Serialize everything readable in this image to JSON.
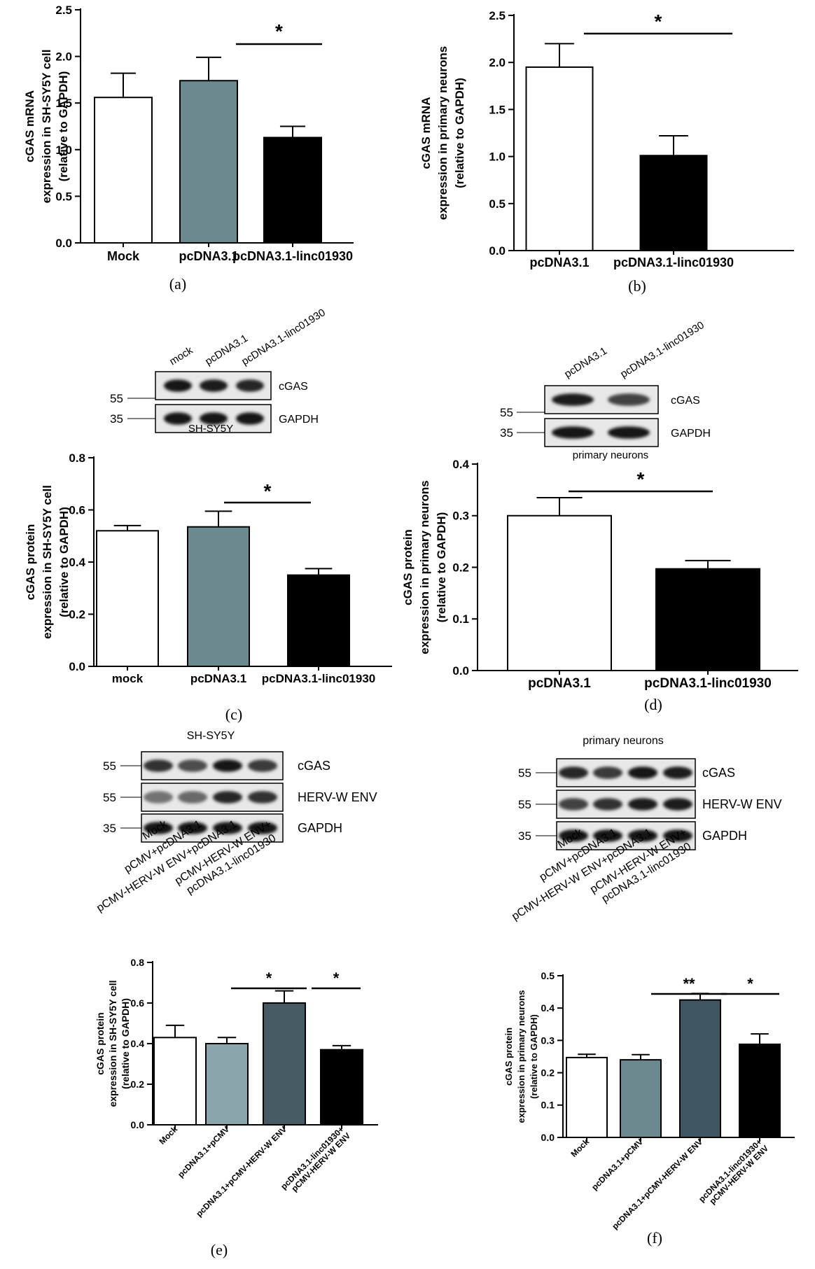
{
  "chart_data": [
    {
      "id": "a",
      "type": "bar",
      "panel_label": "(a)",
      "categories": [
        "Mock",
        "pcDNA3.1",
        "pcDNA3.1-linc01930"
      ],
      "values": [
        1.56,
        1.74,
        1.13
      ],
      "errors": [
        0.26,
        0.25,
        0.12
      ],
      "bar_colors": [
        "#ffffff",
        "#6d8990",
        "#000000"
      ],
      "ylabel": [
        "cGAS mRNA",
        "expression in SH-SY5Y cell",
        "(relative to GAPDH)"
      ],
      "ylim": [
        0,
        2.5
      ],
      "yticks": [
        "0.0",
        "0.5",
        "1.0",
        "1.5",
        "2.0",
        "2.5"
      ],
      "significance": [
        {
          "from": 1,
          "to": 2,
          "label": "*"
        }
      ]
    },
    {
      "id": "b",
      "type": "bar",
      "panel_label": "(b)",
      "categories": [
        "pcDNA3.1",
        "pcDNA3.1-linc01930"
      ],
      "values": [
        1.95,
        1.01
      ],
      "errors": [
        0.25,
        0.21
      ],
      "bar_colors": [
        "#ffffff",
        "#000000"
      ],
      "ylabel": [
        "cGAS mRNA",
        "expression in primary neurons",
        "(relative to GAPDH)"
      ],
      "ylim": [
        0,
        2.5
      ],
      "yticks": [
        "0.0",
        "0.5",
        "1.0",
        "1.5",
        "2.0",
        "2.5"
      ],
      "significance": [
        {
          "from": 0,
          "to": 1,
          "label": "*"
        }
      ]
    },
    {
      "id": "c",
      "type": "bar",
      "panel_label": "(c)",
      "categories": [
        "mock",
        "pcDNA3.1",
        "pcDNA3.1-linc01930"
      ],
      "values": [
        0.52,
        0.535,
        0.35
      ],
      "errors": [
        0.02,
        0.06,
        0.025
      ],
      "bar_colors": [
        "#ffffff",
        "#6d8990",
        "#000000"
      ],
      "ylabel": [
        "cGAS protein",
        "expression in SH-SY5Y cell",
        "(relative to GAPDH)"
      ],
      "ylim": [
        0,
        0.8
      ],
      "yticks": [
        "0.0",
        "0.2",
        "0.4",
        "0.6",
        "0.8"
      ],
      "significance": [
        {
          "from": 1,
          "to": 2,
          "label": "*"
        }
      ]
    },
    {
      "id": "d",
      "type": "bar",
      "panel_label": "(d)",
      "categories": [
        "pcDNA3.1",
        "pcDNA3.1-linc01930"
      ],
      "values": [
        0.3,
        0.197
      ],
      "errors": [
        0.035,
        0.016
      ],
      "bar_colors": [
        "#ffffff",
        "#000000"
      ],
      "ylabel": [
        "cGAS protein",
        "expression in primary neurons",
        "(relative to GAPDH)"
      ],
      "ylim": [
        0,
        0.4
      ],
      "yticks": [
        "0.0",
        "0.1",
        "0.2",
        "0.3",
        "0.4"
      ],
      "significance": [
        {
          "from": 0,
          "to": 1,
          "label": "*"
        }
      ]
    },
    {
      "id": "e",
      "type": "bar",
      "panel_label": "(e)",
      "categories": [
        "Mock",
        "pcDNA3.1+pCMV",
        "pcDNA3.1+pCMV-HERV-W ENV",
        "pcDNA3.1-linc01930+ pCMV-HERV-W ENV"
      ],
      "values": [
        0.43,
        0.4,
        0.6,
        0.37
      ],
      "errors": [
        0.06,
        0.03,
        0.06,
        0.02
      ],
      "bar_colors": [
        "#ffffff",
        "#8ba5ad",
        "#455a62",
        "#000000"
      ],
      "ylabel": [
        "cGAS protein",
        "expression in SH-SY5Y cell",
        "(relative to GAPDH)"
      ],
      "ylim": [
        0,
        0.8
      ],
      "yticks": [
        "0.0",
        "0.2",
        "0.4",
        "0.6",
        "0.8"
      ],
      "significance": [
        {
          "from": 1,
          "to": 2,
          "label": "*"
        },
        {
          "from": 2,
          "to": 3,
          "label": "*"
        }
      ]
    },
    {
      "id": "f",
      "type": "bar",
      "panel_label": "(f)",
      "categories": [
        "Mock",
        "pcDNA3.1+pCMV",
        "pcDNA3.1+pCMV-HERV-W ENV",
        "pcDNA3.1-linc01930+ pCMV-HERV-W ENV"
      ],
      "values": [
        0.247,
        0.24,
        0.425,
        0.288
      ],
      "errors": [
        0.01,
        0.016,
        0.02,
        0.032
      ],
      "bar_colors": [
        "#ffffff",
        "#6d8990",
        "#3e5660",
        "#000000"
      ],
      "ylabel": [
        "cGAS protein",
        "expression in primary neurons",
        "(relative to GAPDH)"
      ],
      "ylim": [
        0,
        0.5
      ],
      "yticks": [
        "0.0",
        "0.1",
        "0.2",
        "0.3",
        "0.4",
        "0.5"
      ],
      "significance": [
        {
          "from": 1,
          "to": 2,
          "label": "**"
        },
        {
          "from": 2,
          "to": 3,
          "label": "*"
        }
      ]
    }
  ],
  "blots": [
    {
      "id": "c",
      "caption": "SH-SY5Y",
      "lanes": [
        "mock",
        "pcDNA3.1",
        "pcDNA3.1-linc01930"
      ],
      "rows": [
        {
          "label": "cGAS",
          "marker": "55",
          "intensity": [
            0.95,
            0.9,
            0.85
          ]
        },
        {
          "label": "GAPDH",
          "marker": "35",
          "intensity": [
            0.95,
            0.95,
            0.95
          ]
        }
      ]
    },
    {
      "id": "d",
      "caption": "primary neurons",
      "lanes": [
        "pcDNA3.1",
        "pcDNA3.1-linc01930"
      ],
      "rows": [
        {
          "label": "cGAS",
          "marker": "55",
          "intensity": [
            0.9,
            0.7
          ]
        },
        {
          "label": "GAPDH",
          "marker": "35",
          "intensity": [
            0.95,
            0.95
          ]
        }
      ]
    },
    {
      "id": "e",
      "caption": "SH-SY5Y",
      "lanes": [
        "Mock",
        "pCMV+pcDNA3.1",
        "pCMV-HERV-W ENV+pcDNA3.1",
        "pCMV-HERV-W ENV+",
        "pcDNA3.1-linc01930"
      ],
      "rows": [
        {
          "label": "cGAS",
          "marker": "55",
          "intensity": [
            0.8,
            0.65,
            0.95,
            0.75
          ]
        },
        {
          "label": "HERV-W ENV",
          "marker": "55",
          "intensity": [
            0.45,
            0.5,
            0.85,
            0.8
          ]
        },
        {
          "label": "GAPDH",
          "marker": "35",
          "intensity": [
            0.95,
            0.95,
            0.95,
            0.95
          ]
        }
      ]
    },
    {
      "id": "f",
      "caption": "primary neurons",
      "lanes": [
        "Mock",
        "pCMV+pcDNA3.1",
        "pCMV-HERV-W ENV+pcDNA3.1",
        "pCMV-HERV-W ENV+",
        "pcDNA3.1-linc01930"
      ],
      "rows": [
        {
          "label": "cGAS",
          "marker": "55",
          "intensity": [
            0.85,
            0.75,
            0.95,
            0.9
          ]
        },
        {
          "label": "HERV-W ENV",
          "marker": "55",
          "intensity": [
            0.7,
            0.8,
            0.9,
            0.9
          ]
        },
        {
          "label": "GAPDH",
          "marker": "35",
          "intensity": [
            0.95,
            0.95,
            0.95,
            0.95
          ]
        }
      ]
    }
  ]
}
